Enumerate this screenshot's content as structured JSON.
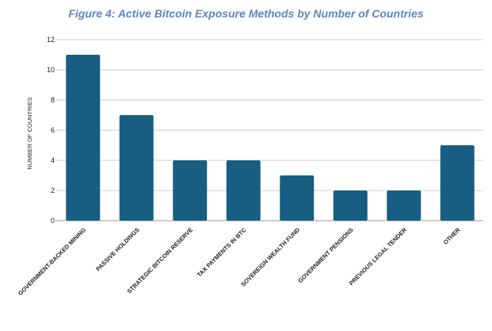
{
  "chart_data": {
    "type": "bar",
    "title": "Figure 4: Active Bitcoin Exposure Methods by Number of Countries",
    "xlabel": "",
    "ylabel": "NUMBER OF COUNTRIES",
    "ylim": [
      0,
      12
    ],
    "yticks": [
      0,
      2,
      4,
      6,
      8,
      10,
      12
    ],
    "grid": true,
    "categories": [
      "GOVERNMENT-BACKED MINING",
      "PASSIVE HOLDINGS",
      "STRATEGIC BITCOIN RESERVE",
      "TAX PAYMENTS IN BTC",
      "SOVEREIGN WEALTH FUND",
      "GOVERNMENT PENSIONS",
      "PREVIOUS LEGAL TENDER",
      "OTHER"
    ],
    "values": [
      11,
      7,
      4,
      4,
      3,
      2,
      2,
      5
    ],
    "colors": {
      "bar": "#175e82",
      "grid": "#cccccc",
      "title": "#5b86c4"
    }
  }
}
